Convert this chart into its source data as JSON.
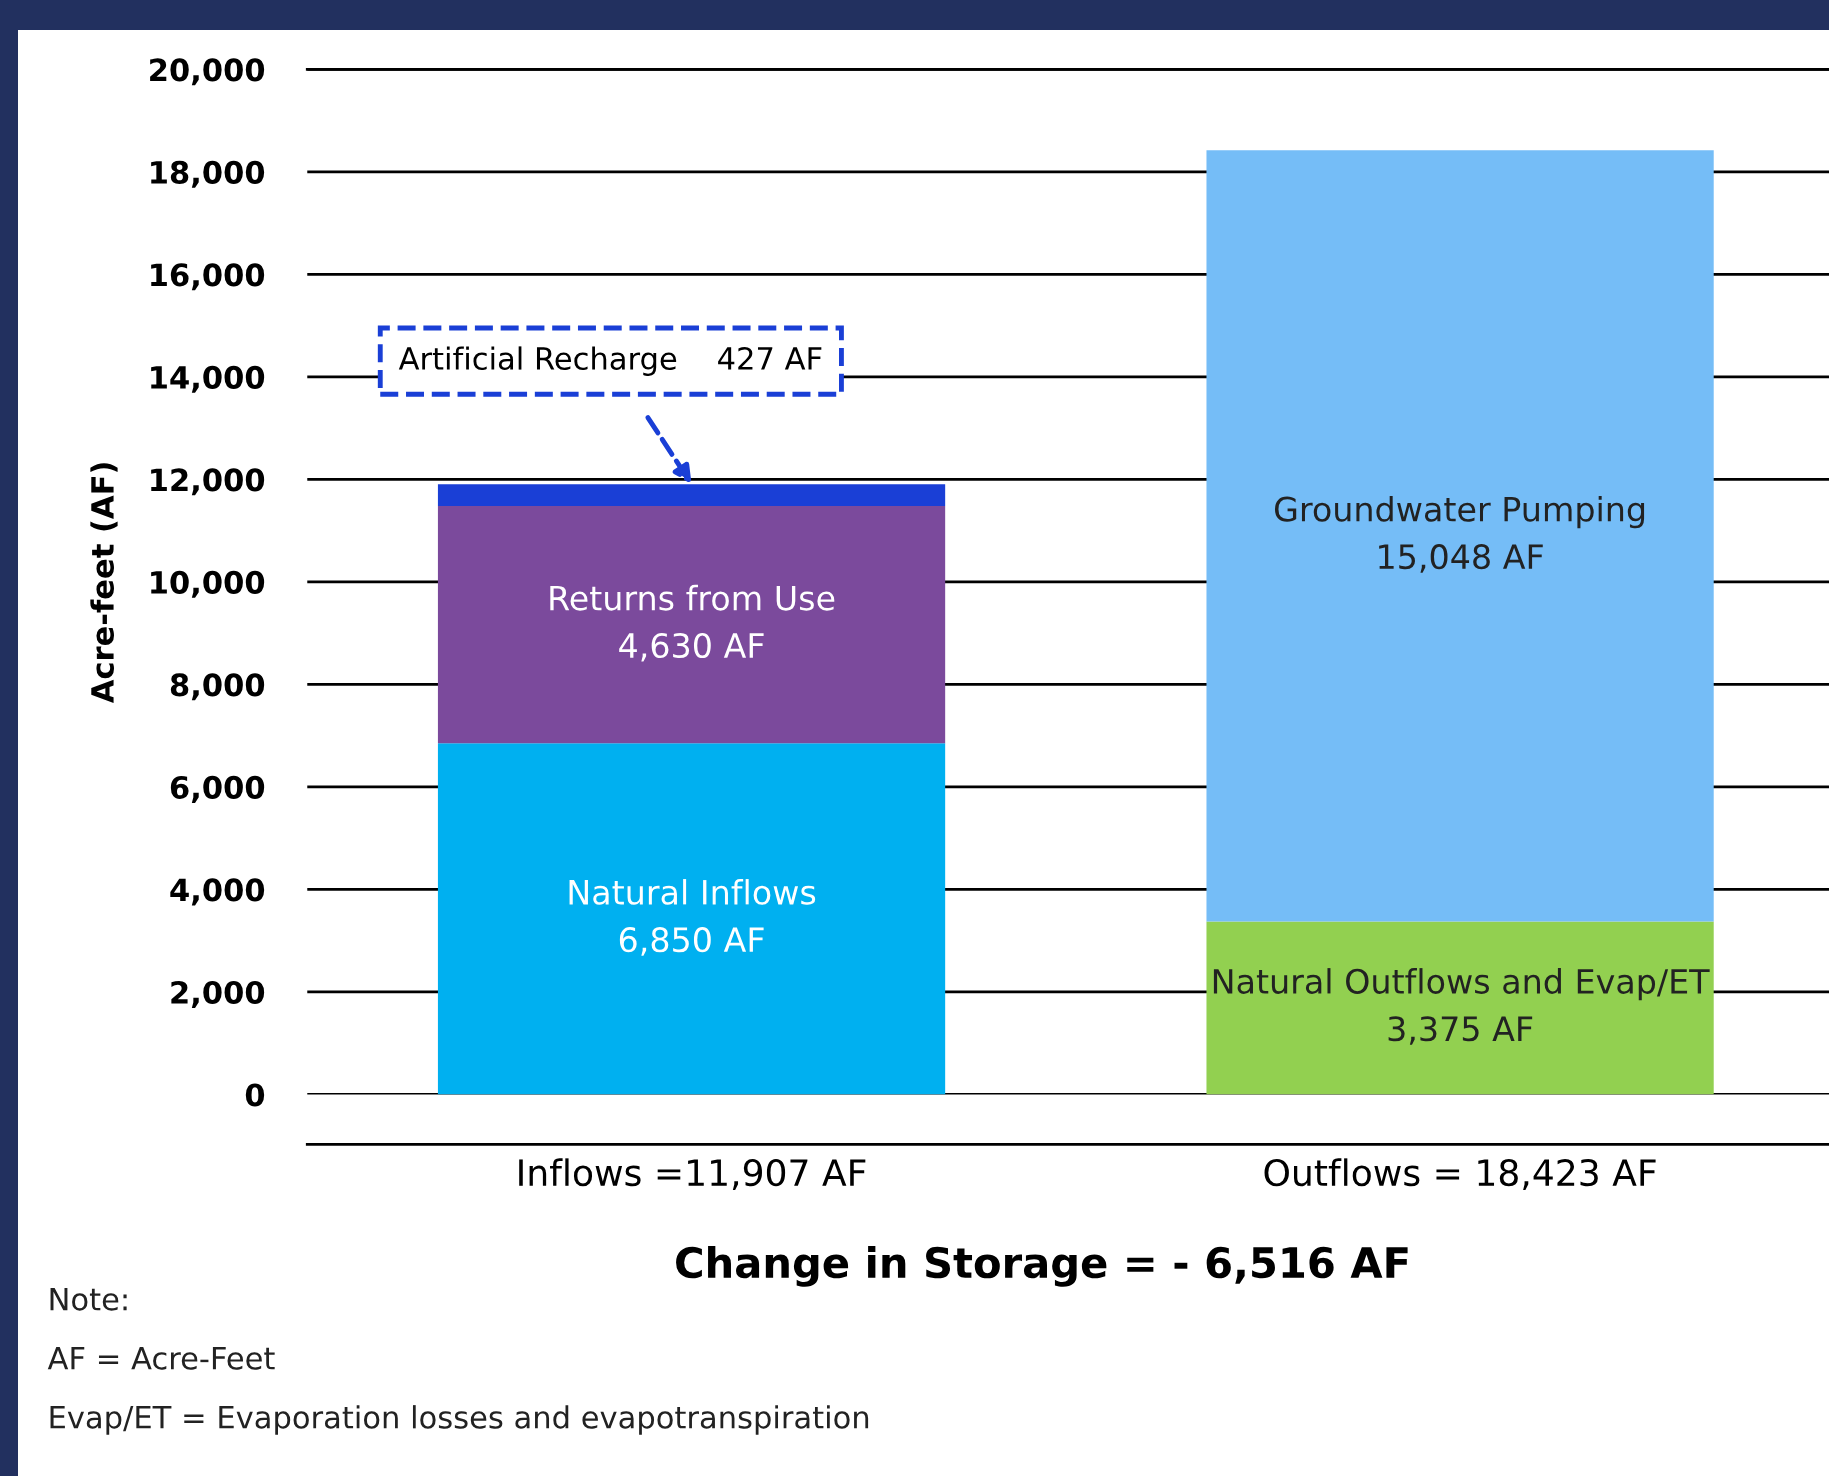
{
  "chart_data": {
    "type": "bar",
    "stacked": true,
    "title": "Change in Storage = - 6,516 AF",
    "ylabel": "Acre-feet (AF)",
    "categories": [
      "Inflows =11,907 AF",
      "Outflows = 18,423 AF"
    ],
    "series": [
      {
        "name": "Natural Inflows",
        "color": "#00b0f0",
        "values": [
          6850,
          null
        ],
        "value_labels": [
          "6,850 AF",
          null
        ]
      },
      {
        "name": "Returns from Use",
        "color": "#7b4a9c",
        "values": [
          4630,
          null
        ],
        "value_labels": [
          "4,630 AF",
          null
        ]
      },
      {
        "name": "Artificial Recharge",
        "color": "#1a3fd6",
        "values": [
          427,
          null
        ],
        "value_labels": [
          "427 AF",
          null
        ]
      },
      {
        "name": "Natural Outflows and Evap/ET",
        "color": "#92d050",
        "values": [
          null,
          3375
        ],
        "value_labels": [
          null,
          "3,375 AF"
        ]
      },
      {
        "name": "Groundwater Pumping",
        "color": "#75bdf7",
        "values": [
          null,
          15048
        ],
        "value_labels": [
          null,
          "15,048 AF"
        ]
      }
    ],
    "ylim": [
      0,
      20000
    ],
    "yticks": [
      {
        "value": 0,
        "label": "0"
      },
      {
        "value": 2000,
        "label": "2,000"
      },
      {
        "value": 4000,
        "label": "4,000"
      },
      {
        "value": 6000,
        "label": "6,000"
      },
      {
        "value": 8000,
        "label": "8,000"
      },
      {
        "value": 10000,
        "label": "10,000"
      },
      {
        "value": 12000,
        "label": "12,000"
      },
      {
        "value": 14000,
        "label": "14,000"
      },
      {
        "value": 16000,
        "label": "16,000"
      },
      {
        "value": 18000,
        "label": "18,000"
      },
      {
        "value": 20000,
        "label": "20,000"
      }
    ],
    "grid": "y",
    "legend": false,
    "annotations": [
      "Note:",
      "AF = Acre-Feet",
      "Evap/ET = Evaporation losses and evapotranspiration"
    ]
  }
}
